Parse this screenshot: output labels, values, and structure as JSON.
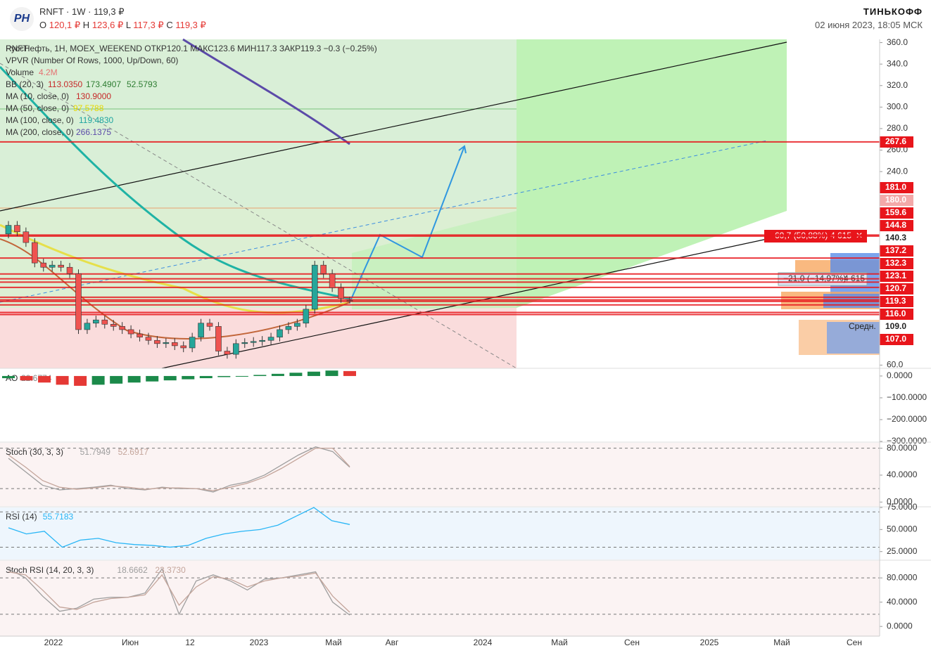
{
  "header": {
    "ticker": "RNFT",
    "interval": "1W",
    "price": "119,3 ₽",
    "o_label": "O",
    "o": "120,1 ₽",
    "h_label": "H",
    "h": "123,6 ₽",
    "l_label": "L",
    "l": "117,3 ₽",
    "c_label": "C",
    "c": "119,3 ₽",
    "brand": "ТИНЬКОФФ",
    "datetime": "02 июня 2023, 18:05 МСК"
  },
  "legend": {
    "main": "РуссНефть, 1Н, MOEX_WEEKEND  ОТКР120.1  МАКС123.6  МИН117.3  ЗАКР119.3  −0.3 (−0.25%)",
    "vpvr": "VPVR (Number Of Rows, 1000, Up/Down, 60)",
    "volume": "Volume",
    "volume_value": "4.2M",
    "bb": "BB (20, 3)",
    "bb_values": [
      "113.0350",
      "173.4907",
      "52.5793"
    ],
    "ma10": "MA (10, close, 0)",
    "ma10_value": "130.9000",
    "ma50": "MA (50, close, 0)",
    "ma50_value": "97.5788",
    "ma100": "MA (100, close, 0)",
    "ma100_value": "119.4830",
    "ma200": "MA (200, close, 0)",
    "ma200_value": "266.1375"
  },
  "annotations": {
    "long_delta": "60,7 (50,88%)",
    "long_qty": "4 615",
    "short_delta": "−21,0 (−14,97%)",
    "short_qty": "4 615",
    "avg": "Средн."
  },
  "chart_data": [
    {
      "type": "candlestick",
      "name": "RNFT",
      "open": [
        182,
        190,
        184,
        174,
        155,
        151,
        153,
        151,
        145,
        93,
        99,
        102,
        98,
        96,
        93,
        89,
        86,
        83,
        80,
        81,
        78,
        76,
        86,
        99,
        96,
        73,
        70,
        80,
        81,
        82,
        83,
        86,
        93,
        96,
        99,
        112,
        153,
        145,
        132,
        120.1
      ],
      "high": [
        194,
        194,
        188,
        178,
        159,
        157,
        157,
        155,
        149,
        103,
        106,
        106,
        102,
        100,
        97,
        93,
        90,
        87,
        85,
        85,
        82,
        90,
        103,
        103,
        100,
        77,
        84,
        85,
        86,
        87,
        90,
        97,
        100,
        103,
        116,
        157,
        157,
        149,
        136,
        123.6
      ],
      "low": [
        178,
        180,
        170,
        151,
        147,
        147,
        147,
        141,
        89,
        89,
        95,
        94,
        92,
        89,
        85,
        82,
        79,
        76,
        76,
        74,
        72,
        72,
        82,
        92,
        69,
        66,
        66,
        76,
        77,
        78,
        79,
        82,
        89,
        92,
        95,
        108,
        141,
        128,
        118,
        117.3
      ],
      "close": [
        190,
        184,
        174,
        155,
        151,
        153,
        151,
        145,
        93,
        99,
        102,
        98,
        96,
        93,
        89,
        86,
        83,
        80,
        81,
        78,
        76,
        86,
        99,
        96,
        73,
        70,
        80,
        81,
        82,
        83,
        86,
        93,
        96,
        99,
        112,
        153,
        145,
        132,
        122,
        119.3
      ],
      "up_color": "#26a69a",
      "down_color": "#ef5350",
      "ylim": [
        57,
        363
      ],
      "yticks": [
        {
          "value": 360,
          "label": "360.0"
        },
        {
          "value": 340,
          "label": "340.0"
        },
        {
          "value": 320,
          "label": "320.0"
        },
        {
          "value": 300,
          "label": "300.0"
        },
        {
          "value": 280,
          "label": "280.0"
        },
        {
          "value": 260,
          "label": "260.0"
        },
        {
          "value": 240,
          "label": "240.0"
        },
        {
          "value": 60,
          "label": "60.0"
        }
      ],
      "levels": [
        267.6,
        {
          "value": 181,
          "label": "181.0"
        },
        {
          "value": 180,
          "label": "180.0"
        },
        159.6,
        144.8,
        140.3,
        137.2,
        132.3,
        123.1,
        120.7,
        119.3,
        {
          "value": 116,
          "label": "116.0"
        },
        {
          "value": 109,
          "label": "109.0"
        },
        {
          "value": 107,
          "label": "107.0"
        }
      ],
      "level_color": "#e8151b",
      "xtick_labels": [
        "2022",
        "Июн",
        "12",
        "2023",
        "Май",
        "Авг",
        "2024",
        "Май",
        "Сен",
        "2025",
        "Май",
        "Сен"
      ]
    },
    {
      "type": "bar",
      "name": "AO",
      "legend_value": "22.6774",
      "values": [
        -10,
        -20,
        -30,
        -40,
        -45,
        -40,
        -35,
        -30,
        -25,
        -20,
        -15,
        -10,
        -5,
        0,
        5,
        10,
        15,
        20,
        25,
        22.6774
      ],
      "up_color": "#1b8a4a",
      "down_color": "#e53935",
      "ylim": [
        -300,
        32
      ],
      "yticks": [
        {
          "value": 0,
          "label": "0.0000"
        },
        {
          "value": -100,
          "label": "−100.0000"
        },
        {
          "value": -200,
          "label": "−200.0000"
        },
        {
          "value": -300,
          "label": "−300.0000"
        }
      ]
    },
    {
      "type": "line",
      "name": "Stoch (30, 3, 3)",
      "background": "#fbf3f3",
      "bands": [
        80,
        20
      ],
      "series": [
        {
          "name": "51.7949",
          "color": "#9e9e9e",
          "values": [
            65,
            45,
            25,
            18,
            20,
            22,
            25,
            20,
            18,
            22,
            20,
            20,
            15,
            25,
            30,
            40,
            55,
            70,
            82,
            75,
            51.7949
          ]
        },
        {
          "name": "52.6917",
          "color": "#c4a59b",
          "values": [
            70,
            52,
            32,
            22,
            19,
            21,
            24,
            22,
            19,
            21,
            21,
            20,
            17,
            22,
            28,
            37,
            50,
            65,
            80,
            80,
            52.6917
          ]
        }
      ],
      "ylim": [
        -6,
        88
      ],
      "yticks": [
        {
          "value": 80,
          "label": "80.0000"
        },
        {
          "value": 40,
          "label": "40.0000"
        },
        {
          "value": 0,
          "label": "0.0000"
        }
      ]
    },
    {
      "type": "line",
      "name": "RSI (14)",
      "background": "#eef6fd",
      "bands": [
        70,
        30
      ],
      "series": [
        {
          "name": "55.7183",
          "color": "#29b6f6",
          "values": [
            52,
            45,
            48,
            30,
            38,
            40,
            35,
            33,
            32,
            30,
            32,
            40,
            45,
            48,
            50,
            55,
            65,
            75,
            60,
            55.7183
          ]
        }
      ],
      "ylim": [
        16,
        75
      ],
      "yticks": [
        {
          "value": 75,
          "label": "75.0000"
        },
        {
          "value": 50,
          "label": "50.0000"
        },
        {
          "value": 25,
          "label": "25.0000"
        }
      ]
    },
    {
      "type": "line",
      "name": "Stoch RSI (14, 20, 3, 3)",
      "background": "#fbf3f3",
      "bands": [
        80,
        20
      ],
      "series": [
        {
          "name": "18.6662",
          "color": "#9e9e9e",
          "values": [
            95,
            80,
            50,
            25,
            30,
            45,
            48,
            48,
            55,
            95,
            20,
            75,
            85,
            75,
            60,
            78,
            80,
            85,
            90,
            40,
            18.6662
          ]
        },
        {
          "name": "23.3730",
          "color": "#c4a59b",
          "values": [
            90,
            85,
            60,
            32,
            28,
            40,
            46,
            48,
            52,
            85,
            35,
            65,
            82,
            78,
            65,
            75,
            80,
            83,
            88,
            50,
            23.373
          ]
        }
      ],
      "ylim": [
        -16,
        108
      ],
      "yticks": [
        {
          "value": 80,
          "label": "80.0000"
        },
        {
          "value": 40,
          "label": "40.0000"
        },
        {
          "value": 0,
          "label": "0.0000"
        }
      ]
    }
  ]
}
